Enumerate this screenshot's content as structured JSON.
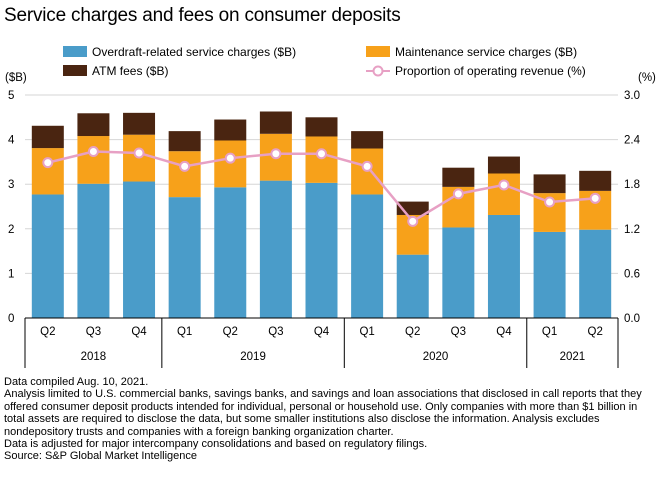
{
  "chart_data": {
    "type": "bar+line",
    "title": "Service charges and fees on consumer deposits",
    "left_axis": {
      "unit_label": "($B)",
      "min": 0,
      "max": 5,
      "ticks": [
        "0",
        "1",
        "2",
        "3",
        "4",
        "5"
      ]
    },
    "right_axis": {
      "unit_label": "(%)",
      "min": 0,
      "max": 3.0,
      "ticks": [
        "0.0",
        "0.6",
        "1.2",
        "1.8",
        "2.4",
        "3.0"
      ]
    },
    "categories": [
      "Q2",
      "Q3",
      "Q4",
      "Q1",
      "Q2",
      "Q3",
      "Q4",
      "Q1",
      "Q2",
      "Q3",
      "Q4",
      "Q1",
      "Q2"
    ],
    "year_groups": [
      {
        "label": "2018",
        "start": 0,
        "end": 2
      },
      {
        "label": "2019",
        "start": 3,
        "end": 6
      },
      {
        "label": "2020",
        "start": 7,
        "end": 10
      },
      {
        "label": "2021",
        "start": 11,
        "end": 12
      }
    ],
    "series": [
      {
        "name": "Overdraft-related service charges ($B)",
        "type": "bar",
        "color": "#4a9cc9",
        "values": [
          2.77,
          3.01,
          3.06,
          2.71,
          2.93,
          3.08,
          3.03,
          2.77,
          1.42,
          2.03,
          2.31,
          1.93,
          1.98
        ]
      },
      {
        "name": "Maintenance service charges ($B)",
        "type": "bar",
        "color": "#f7a11a",
        "values": [
          1.04,
          1.07,
          1.05,
          1.03,
          1.05,
          1.05,
          1.04,
          1.03,
          0.89,
          0.91,
          0.93,
          0.87,
          0.87
        ]
      },
      {
        "name": "ATM fees ($B)",
        "type": "bar",
        "color": "#4a2511",
        "values": [
          0.5,
          0.51,
          0.49,
          0.45,
          0.47,
          0.5,
          0.43,
          0.39,
          0.3,
          0.43,
          0.38,
          0.42,
          0.45
        ]
      },
      {
        "name": "Proportion of operating revenue (%)",
        "type": "line",
        "axis": "right",
        "color": "#e7a0c4",
        "values": [
          2.09,
          2.24,
          2.22,
          2.04,
          2.15,
          2.21,
          2.21,
          2.04,
          1.3,
          1.67,
          1.79,
          1.56,
          1.61
        ]
      }
    ],
    "legend_placement": "top"
  },
  "notes": [
    "Data compiled Aug. 10, 2021.",
    "Analysis limited to U.S. commercial banks, savings banks, and savings and loan associations that disclosed in call reports that they offered consumer deposit products intended for individual, personal or household use. Only companies with more than $1 billion in total assets are required to disclose the data, but some smaller institutions also disclose the information. Analysis excludes nondepository trusts and companies with a foreign banking organization charter.",
    "Data is adjusted for major intercompany consolidations and based on regulatory filings."
  ],
  "source": "Source: S&P Global Market Intelligence"
}
